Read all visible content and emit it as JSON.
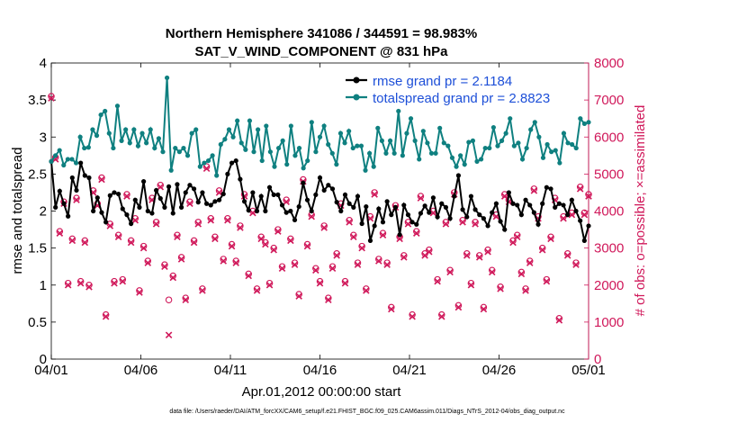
{
  "title_line1": "Northern Hemisphere 341086 / 344591 = 98.983%",
  "title_line2": "SAT_V_WIND_COMPONENT @ 831 hPa",
  "ylabel_left": "rmse and totalspread",
  "ylabel_right": "# of obs: o=possible; ×=assimilated",
  "xlabel": "Apr.01,2012 00:00:00 start",
  "footnote": "data file: /Users/raeder/DAI/ATM_forcXX/CAM6_setup/f.e21.FHIST_BGC.f09_025.CAM6assim.011/Diags_NTrS_2012-04/obs_diag_output.nc",
  "colors": {
    "rmse": "#000000",
    "spread": "#0f8080",
    "obs": "#d0185a",
    "legend_text": "#1d4fd8"
  },
  "chart_data": {
    "type": "line",
    "title": "Northern Hemisphere 341086 / 344591 = 98.983%\nSAT_V_WIND_COMPONENT @ 831 hPa",
    "xlabel": "Apr.01,2012 00:00:00 start",
    "ylabel": "rmse and totalspread",
    "y2label": "# of obs: o=possible; ×=assimilated",
    "xlim": [
      0,
      30
    ],
    "ylim": [
      0,
      4
    ],
    "y2lim": [
      0,
      8000
    ],
    "xticks": [
      0,
      5,
      10,
      15,
      20,
      25,
      30
    ],
    "xtick_labels": [
      "04/01",
      "04/06",
      "04/11",
      "04/16",
      "04/21",
      "04/26",
      "05/01"
    ],
    "yticks": [
      0,
      0.5,
      1,
      1.5,
      2,
      2.5,
      3,
      3.5,
      4
    ],
    "ytick_labels": [
      "0",
      "0.5",
      "1",
      "1.5",
      "2",
      "2.5",
      "3",
      "3.5",
      "4"
    ],
    "y2ticks": [
      0,
      1000,
      2000,
      3000,
      4000,
      5000,
      6000,
      7000,
      8000
    ],
    "y2tick_labels": [
      "0",
      "1000",
      "2000",
      "3000",
      "4000",
      "5000",
      "6000",
      "7000",
      "8000"
    ],
    "legend_placement": "top-right",
    "grid": false,
    "series": [
      {
        "name": "rmse grand pr = 2.1184",
        "axis": "left",
        "values": [
          2.67,
          2.05,
          2.27,
          2.1,
          1.93,
          2.45,
          2.28,
          2.65,
          2.48,
          2.45,
          2.0,
          2.18,
          1.98,
          1.85,
          2.21,
          2.25,
          2.23,
          2.03,
          1.95,
          1.83,
          2.15,
          2.05,
          2.4,
          2.0,
          1.97,
          2.28,
          2.17,
          2.05,
          2.33,
          1.97,
          2.36,
          2.05,
          2.25,
          2.35,
          2.3,
          2.12,
          2.25,
          2.1,
          2.08,
          2.13,
          2.15,
          2.23,
          2.5,
          2.65,
          2.68,
          2.43,
          2.13,
          2.01,
          2.25,
          2.0,
          2.2,
          2.0,
          2.32,
          2.22,
          2.22,
          2.08,
          1.98,
          2.0,
          1.88,
          2.06,
          2.38,
          2.15,
          2.0,
          2.22,
          2.45,
          2.28,
          2.35,
          2.3,
          2.12,
          2.0,
          2.22,
          2.1,
          2.05,
          2.2,
          1.83,
          2.06,
          1.6,
          1.8,
          2.03,
          1.85,
          2.13,
          1.95,
          2.05,
          1.68,
          2.08,
          1.95,
          1.85,
          1.82,
          1.97,
          2.07,
          1.98,
          2.18,
          1.92,
          2.1,
          2.05,
          1.9,
          2.2,
          2.48,
          2.02,
          1.92,
          2.2,
          2.02,
          1.95,
          1.9,
          1.8,
          1.98,
          2.1,
          1.86,
          1.75,
          2.25,
          2.1,
          2.08,
          1.95,
          2.15,
          2.08,
          1.98,
          1.82,
          2.1,
          2.32,
          2.3,
          2.05,
          2.1,
          2.08,
          1.95,
          2.15,
          2.0,
          1.87,
          1.6,
          1.8
        ]
      },
      {
        "name": "totalspread grand pr = 2.8823",
        "axis": "left",
        "values": [
          2.67,
          2.75,
          2.82,
          2.62,
          2.7,
          2.7,
          2.65,
          3.0,
          2.85,
          2.86,
          3.1,
          3.02,
          3.3,
          3.35,
          3.05,
          2.85,
          3.42,
          2.95,
          3.1,
          2.92,
          3.1,
          2.88,
          3.05,
          2.92,
          3.1,
          2.85,
          2.98,
          2.8,
          3.8,
          2.55,
          2.85,
          2.8,
          2.85,
          2.75,
          3.05,
          3.1,
          2.6,
          2.65,
          2.68,
          2.75,
          2.48,
          2.9,
          2.97,
          3.1,
          3.0,
          3.22,
          2.92,
          2.83,
          3.22,
          2.8,
          3.1,
          2.68,
          3.15,
          2.8,
          2.6,
          2.85,
          2.95,
          2.63,
          3.15,
          2.75,
          2.85,
          2.58,
          2.68,
          3.2,
          2.8,
          3.0,
          3.15,
          2.9,
          2.78,
          2.63,
          3.05,
          2.92,
          3.08,
          2.85,
          2.88,
          2.88,
          2.55,
          2.78,
          2.6,
          3.12,
          2.95,
          2.78,
          2.95,
          2.78,
          3.35,
          2.75,
          3.05,
          3.25,
          2.95,
          2.7,
          3.08,
          2.92,
          2.78,
          2.78,
          3.12,
          2.92,
          2.88,
          2.72,
          2.6,
          2.75,
          2.63,
          2.93,
          2.95,
          2.67,
          2.7,
          2.85,
          2.85,
          3.13,
          2.88,
          2.95,
          3.05,
          3.25,
          2.88,
          2.92,
          2.7,
          2.85,
          3.1,
          3.2,
          3.0,
          2.72,
          2.9,
          2.8,
          2.82,
          2.65,
          3.05,
          2.92,
          2.9,
          2.85,
          3.25,
          3.18,
          3.2
        ]
      },
      {
        "name": "obs possible",
        "axis": "right",
        "marker": "o",
        "values": [
          7100,
          5450,
          3450,
          4250,
          2050,
          3250,
          4350,
          2100,
          3200,
          2000,
          4550,
          4200,
          4900,
          1200,
          3650,
          2100,
          3350,
          2150,
          4450,
          3200,
          3800,
          1850,
          3050,
          2650,
          4350,
          3700,
          4700,
          2550,
          1600,
          2250,
          3350,
          2750,
          1650,
          4250,
          3200,
          3700,
          1900,
          5200,
          3800,
          3300,
          4550,
          2700,
          3800,
          3100,
          2650,
          3600,
          4450,
          2300,
          4000,
          1900,
          3300,
          3150,
          2050,
          3000,
          3500,
          2500,
          4300,
          3250,
          2600,
          1750,
          4850,
          3100,
          3900,
          2450,
          2100,
          3600,
          1650,
          2500,
          2850,
          4200,
          2100,
          3750,
          3350,
          2600,
          3050,
          1900,
          3850,
          4500,
          2700,
          3400,
          2600,
          1400,
          4150,
          3300,
          2800,
          3700,
          1200,
          3450,
          4400,
          2850,
          2950,
          4000,
          2150,
          1200,
          3700,
          2400,
          4500,
          1450,
          3750,
          2850,
          2050,
          3700,
          2800,
          1400,
          2950,
          2400,
          3900,
          1950,
          4450,
          4300,
          3200,
          3350,
          2350,
          1900,
          2650,
          4600,
          3850,
          3000,
          2150,
          3300,
          4350,
          1100,
          3850,
          2850,
          3950,
          2600,
          4650,
          3950,
          4450
        ]
      },
      {
        "name": "obs assimilated",
        "axis": "right",
        "marker": "x",
        "values": [
          7050,
          5400,
          3400,
          4200,
          2000,
          3200,
          4300,
          2050,
          3150,
          1950,
          4500,
          4150,
          4850,
          1150,
          3600,
          2050,
          3300,
          2100,
          4400,
          3150,
          3750,
          1800,
          3000,
          2600,
          4300,
          3650,
          4650,
          2500,
          650,
          2200,
          3300,
          2700,
          1600,
          4200,
          3150,
          3650,
          1850,
          5150,
          3750,
          3250,
          4500,
          2650,
          3750,
          3050,
          2600,
          3550,
          4400,
          2250,
          3950,
          1850,
          3250,
          3100,
          2000,
          2950,
          3450,
          2450,
          4250,
          3200,
          2550,
          1700,
          4800,
          3050,
          3850,
          2400,
          2050,
          3550,
          1600,
          2450,
          2800,
          4150,
          2050,
          3700,
          3300,
          2550,
          3000,
          1850,
          3800,
          4450,
          2650,
          3350,
          2550,
          1350,
          4100,
          3250,
          2750,
          3650,
          1150,
          3400,
          4350,
          2800,
          2900,
          3950,
          2100,
          1150,
          3650,
          2350,
          4450,
          1400,
          3700,
          2800,
          2000,
          3650,
          2750,
          1350,
          2900,
          2350,
          3850,
          1900,
          4400,
          4250,
          3150,
          3300,
          2300,
          1850,
          2600,
          4550,
          3800,
          2950,
          2100,
          3250,
          4300,
          1050,
          3800,
          2800,
          3900,
          2550,
          4600,
          3900,
          4400
        ]
      }
    ]
  }
}
